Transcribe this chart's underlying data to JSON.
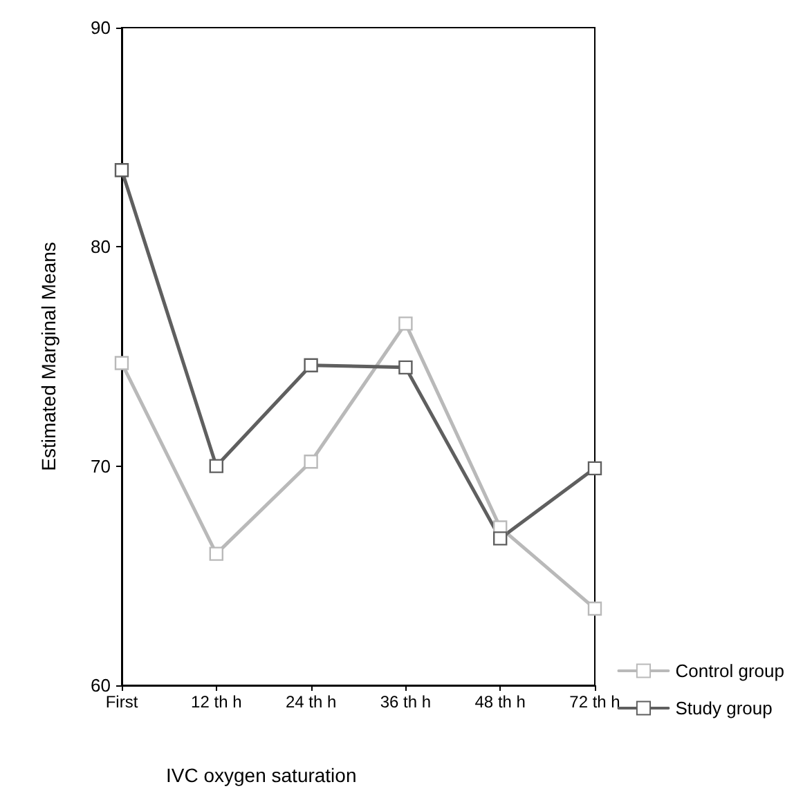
{
  "chart_data": {
    "type": "line",
    "xlabel": "IVC oxygen saturation",
    "ylabel": "Estimated Marginal Means",
    "categories": [
      "First",
      "12 th h",
      "24 th h",
      "36 th h",
      "48 th h",
      "72 th h"
    ],
    "series": [
      {
        "name": "Control group",
        "color": "#b9b9b9",
        "values": [
          74.7,
          66.0,
          70.2,
          76.5,
          67.2,
          63.5
        ]
      },
      {
        "name": "Study group",
        "color": "#5f5f5f",
        "values": [
          83.5,
          70.0,
          74.6,
          74.5,
          66.7,
          69.9
        ]
      }
    ],
    "ylim": [
      60,
      90
    ],
    "yticks": [
      60,
      70,
      80,
      90
    ],
    "grid": false,
    "legend": "bottom right",
    "marker": "square",
    "line_style": "solid"
  }
}
